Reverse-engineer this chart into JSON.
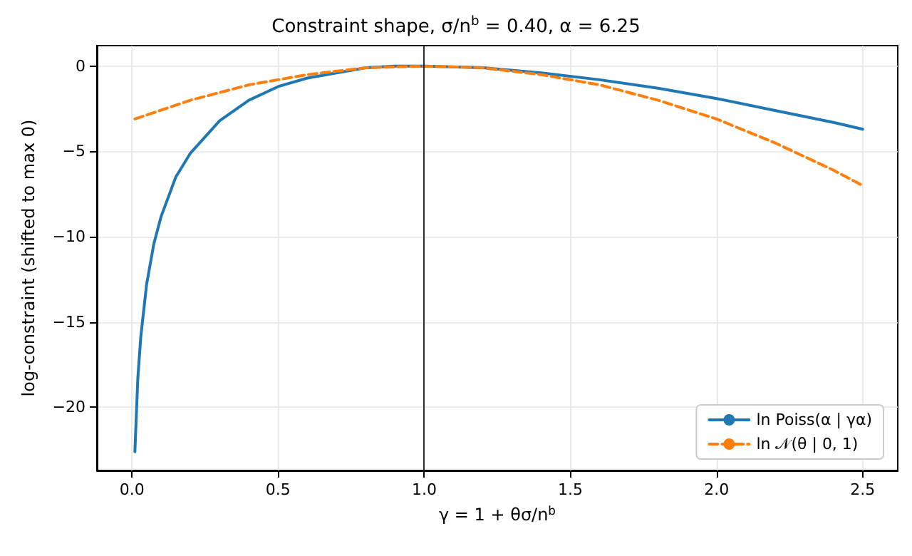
{
  "chart_data": {
    "type": "line",
    "title": "Constraint shape, σ/n$^{b}$ = 0.40, α = 6.25",
    "xlabel": "γ = 1 + θσ/n$^{b}$",
    "ylabel": "log-constraint (shifted to max 0)",
    "series": [
      {
        "name": "ln Poiss(α | γα)",
        "color": "#1f77b4",
        "line_style": "solid",
        "x": [
          0.01,
          0.02,
          0.03,
          0.05,
          0.075,
          0.1,
          0.15,
          0.2,
          0.3,
          0.4,
          0.5,
          0.6,
          0.7,
          0.8,
          0.9,
          1.0,
          1.2,
          1.4,
          1.6,
          1.8,
          2.0,
          2.2,
          2.4,
          2.5
        ],
        "values": [
          -22.6,
          -18.3,
          -15.9,
          -12.8,
          -10.4,
          -8.8,
          -6.5,
          -5.1,
          -3.2,
          -2.0,
          -1.2,
          -0.7,
          -0.4,
          -0.1,
          0,
          0,
          -0.1,
          -0.4,
          -0.8,
          -1.3,
          -1.9,
          -2.6,
          -3.3,
          -3.7
        ]
      },
      {
        "name": "ln 𝒩(θ | 0, 1)",
        "color": "#ff7f0e",
        "line_style": "dashed",
        "x": [
          0.01,
          0.2,
          0.4,
          0.6,
          0.8,
          1.0,
          1.2,
          1.4,
          1.6,
          1.8,
          2.0,
          2.2,
          2.4,
          2.5
        ],
        "values": [
          -3.1,
          -2.0,
          -1.1,
          -0.5,
          -0.1,
          0,
          -0.1,
          -0.5,
          -1.1,
          -2.0,
          -3.1,
          -4.5,
          -6.1,
          -7.0
        ]
      }
    ],
    "xlim": [
      -0.12,
      2.62
    ],
    "xticks": [
      {
        "value": 0,
        "label": "0.0"
      },
      0.5,
      {
        "value": 1,
        "label": "1.0"
      },
      1.5,
      {
        "value": 2,
        "label": "2.0"
      },
      2.5
    ],
    "ylim": [
      -23.7,
      1.2
    ],
    "yticks": [
      {
        "value": -20,
        "label": "−20"
      },
      {
        "value": -15,
        "label": "−15"
      },
      {
        "value": -10,
        "label": "−10"
      },
      {
        "value": -5,
        "label": "−5"
      },
      0
    ],
    "ref_lines": [
      {
        "axis": "x",
        "value": 1,
        "color": "#000000"
      }
    ],
    "grid": true,
    "legend": "bottom right",
    "marker": "none"
  }
}
